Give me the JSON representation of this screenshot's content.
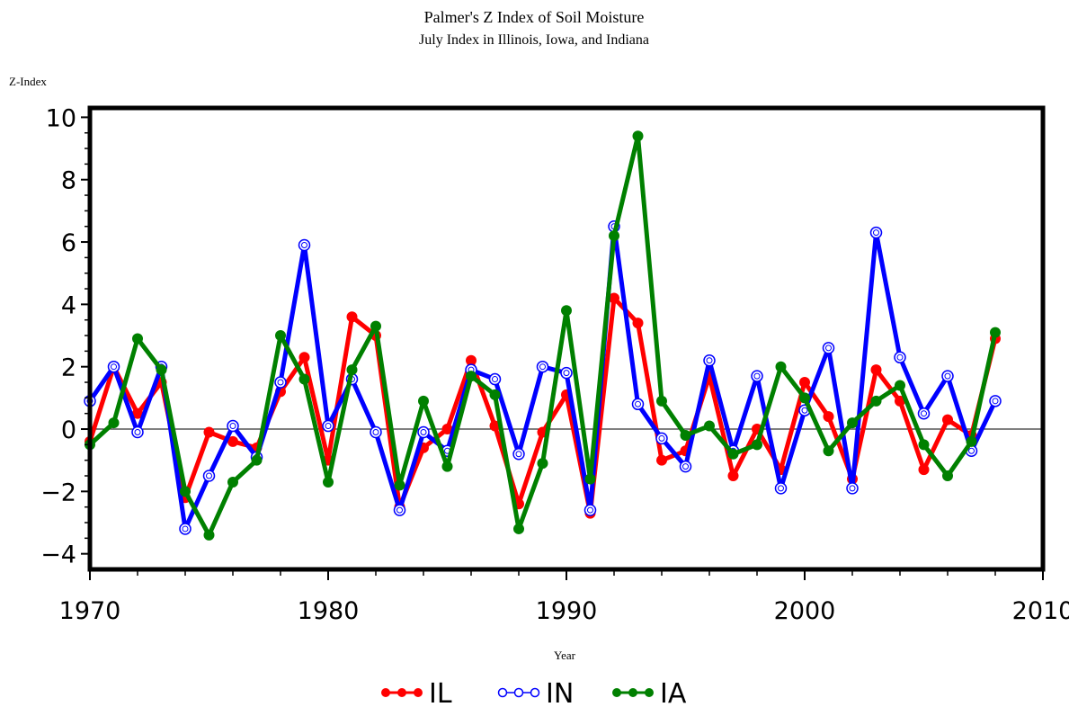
{
  "chart_data": {
    "type": "line",
    "title": "Palmer's Z Index of Soil Moisture",
    "subtitle": "July Index in Illinois, Iowa, and Indiana",
    "ylabel": "Z-Index",
    "xlabel": "Year",
    "xlim": [
      1970,
      2010
    ],
    "ylim": [
      -4.5,
      10.3
    ],
    "x_ticks": [
      1970,
      1980,
      1990,
      2000,
      2010
    ],
    "y_ticks": [
      -4,
      -2,
      0,
      2,
      4,
      6,
      8,
      10
    ],
    "zero_line": true,
    "grid": false,
    "legend_position": "bottom-center",
    "x": [
      1970,
      1971,
      1972,
      1973,
      1974,
      1975,
      1976,
      1977,
      1978,
      1979,
      1980,
      1981,
      1982,
      1983,
      1984,
      1985,
      1986,
      1987,
      1988,
      1989,
      1990,
      1991,
      1992,
      1993,
      1994,
      1995,
      1996,
      1997,
      1998,
      1999,
      2000,
      2001,
      2002,
      2003,
      2004,
      2005,
      2006,
      2007,
      2008
    ],
    "series": [
      {
        "name": "IL",
        "color": "#ff0000",
        "marker": "filled-circle",
        "values": [
          -0.4,
          2.0,
          0.5,
          1.5,
          -2.2,
          -0.1,
          -0.4,
          -0.6,
          1.2,
          2.3,
          -1.0,
          3.6,
          3.0,
          -2.5,
          -0.6,
          0.0,
          2.2,
          0.1,
          -2.4,
          -0.1,
          1.1,
          -2.7,
          4.2,
          3.4,
          -1.0,
          -0.7,
          1.7,
          -1.5,
          0.0,
          -1.3,
          1.5,
          0.4,
          -1.6,
          1.9,
          0.9,
          -1.3,
          0.3,
          -0.2,
          2.9
        ]
      },
      {
        "name": "IN",
        "color": "#0000ff",
        "marker": "open-circle",
        "values": [
          0.9,
          2.0,
          -0.1,
          2.0,
          -3.2,
          -1.5,
          0.1,
          -0.9,
          1.5,
          5.9,
          0.1,
          1.6,
          -0.1,
          -2.6,
          -0.1,
          -0.7,
          1.9,
          1.6,
          -0.8,
          2.0,
          1.8,
          -2.6,
          6.5,
          0.8,
          -0.3,
          -1.2,
          2.2,
          -0.7,
          1.7,
          -1.9,
          0.6,
          2.6,
          -1.9,
          6.3,
          2.3,
          0.5,
          1.7,
          -0.7,
          0.9
        ]
      },
      {
        "name": "IA",
        "color": "#008000",
        "marker": "filled-circle",
        "values": [
          -0.5,
          0.2,
          2.9,
          1.9,
          -2.0,
          -3.4,
          -1.7,
          -1.0,
          3.0,
          1.6,
          -1.7,
          1.9,
          3.3,
          -1.8,
          0.9,
          -1.2,
          1.7,
          1.1,
          -3.2,
          -1.1,
          3.8,
          -1.6,
          6.2,
          9.4,
          0.9,
          -0.2,
          0.1,
          -0.8,
          -0.5,
          2.0,
          1.0,
          -0.7,
          0.2,
          0.9,
          1.4,
          -0.5,
          -1.5,
          -0.4,
          3.1
        ]
      }
    ]
  }
}
